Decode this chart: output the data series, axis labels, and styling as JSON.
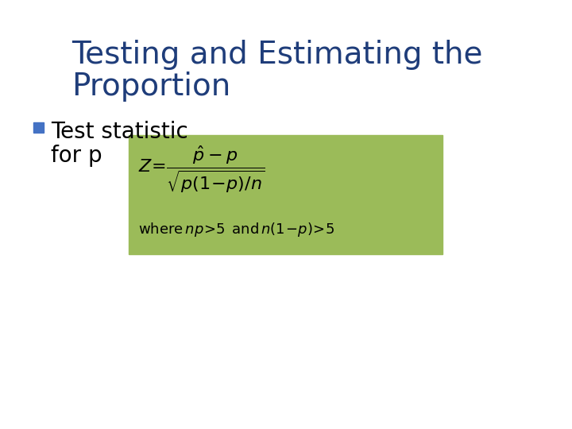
{
  "title_line1": "Testing and Estimating the",
  "title_line2": "Proportion",
  "title_color": "#1F3D7A",
  "title_fontsize": 28,
  "bullet_color": "#4472C4",
  "bullet_text_line1": "Test statistic",
  "bullet_text_line2": "for p",
  "bullet_fontsize": 20,
  "box_color": "#9BBB59",
  "formula_color": "#000000",
  "bg_color": "#FFFFFF",
  "fig_width": 7.2,
  "fig_height": 5.4,
  "dpi": 100
}
